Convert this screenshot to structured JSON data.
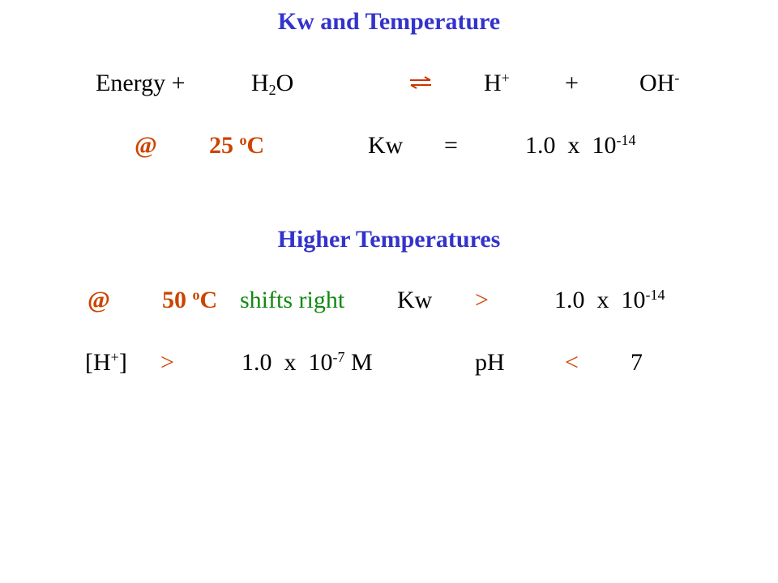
{
  "title": "Kw and Temperature",
  "equation": {
    "energy": "Energy +",
    "water_h": "H",
    "water_sub": "2",
    "water_o": "O",
    "arrow_icon": "equilibrium-arrows-icon",
    "proton_h": "H",
    "proton_sup": "+",
    "plus": "+",
    "hydroxide_oh": "OH",
    "hydroxide_sup": "-"
  },
  "line_25": {
    "at": "@",
    "temp_value": "25 ",
    "temp_sup": "o",
    "temp_unit": "C",
    "kw": "Kw",
    "equals": "=",
    "value": "1.0  x  10",
    "exponent": "-14"
  },
  "subtitle": "Higher Temperatures",
  "line_50": {
    "at": "@",
    "temp_value": "50 ",
    "temp_sup": "o",
    "temp_unit": "C",
    "shift": "shifts right",
    "kw": "Kw",
    "greater": ">",
    "value": "1.0  x  10",
    "exponent": "-14"
  },
  "line_h": {
    "open": "[H",
    "sup": "+",
    "close": "]",
    "greater": ">",
    "value": "1.0  x  10",
    "exponent": "-7",
    "unit": " M",
    "ph": "pH",
    "less": "<",
    "seven": "7"
  },
  "colors": {
    "heading": "#3333cc",
    "temperature": "#cc4400",
    "shift_text": "#118811",
    "body": "#000000"
  }
}
